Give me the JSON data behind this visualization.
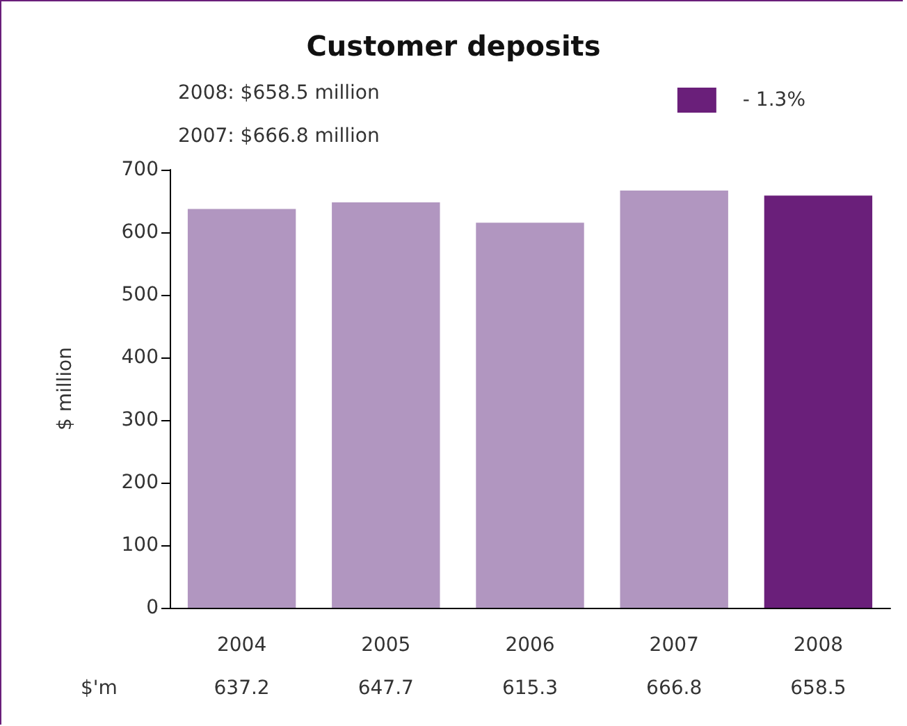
{
  "chart_data": {
    "type": "bar",
    "title": "Customer deposits",
    "ylabel": "$ million",
    "categories": [
      "2004",
      "2005",
      "2006",
      "2007",
      "2008"
    ],
    "series": [
      {
        "name": "- 1.3%",
        "color": "#6a1f7a",
        "colors": [
          "#b196c0",
          "#b196c0",
          "#b196c0",
          "#b196c0",
          "#6a1f7a"
        ],
        "values": [
          637.2,
          647.7,
          615.3,
          666.8,
          658.5
        ]
      }
    ],
    "ylim": [
      0,
      700
    ],
    "yticks": [
      0,
      100,
      200,
      300,
      400,
      500,
      600,
      700
    ],
    "grid": false,
    "legend": "top right",
    "data_labels": true,
    "annotations": [
      "2008: $658.5 million",
      "2007: $666.8 million",
      "$'m"
    ]
  }
}
